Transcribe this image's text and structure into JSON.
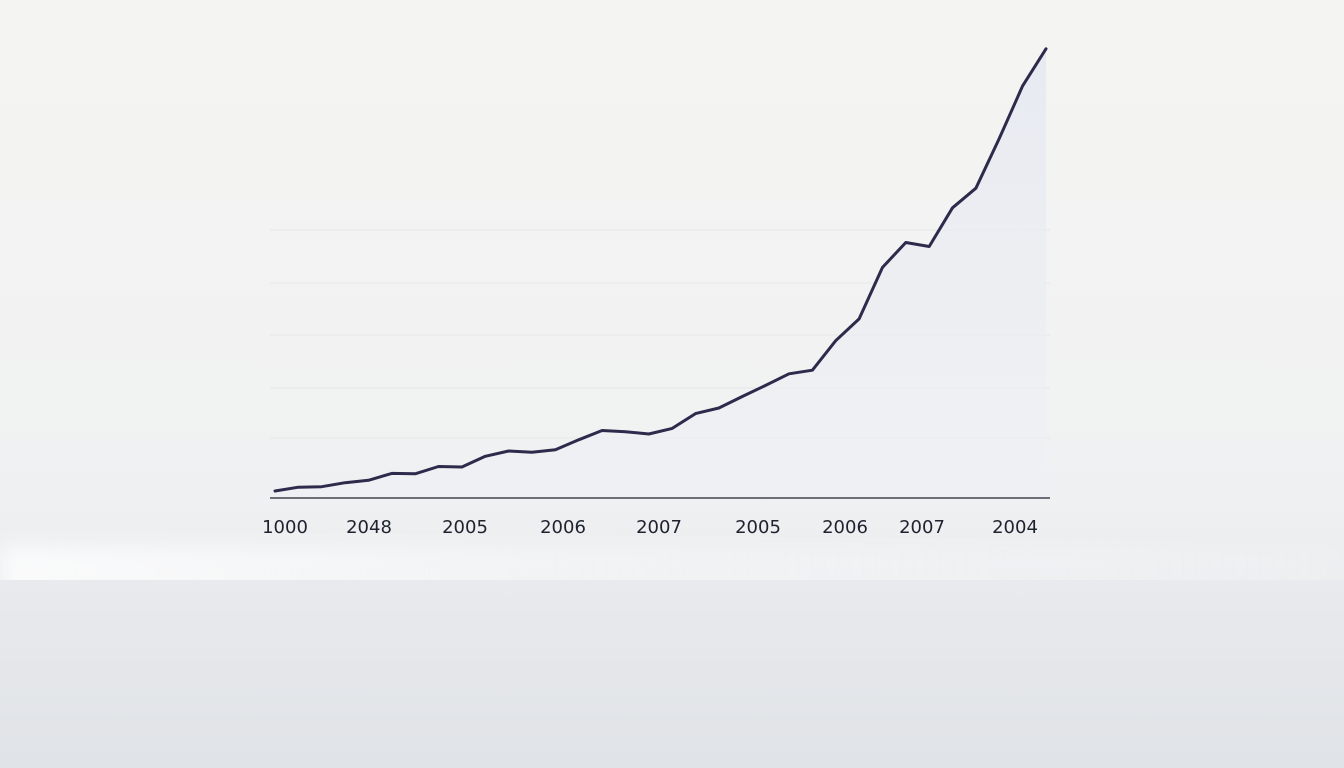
{
  "chart_data": {
    "type": "line",
    "title": "",
    "xlabel": "",
    "ylabel": "",
    "x_tick_labels": [
      "1000",
      "2048",
      "2005",
      "2006",
      "2007",
      "2005",
      "2006",
      "2007",
      "2004"
    ],
    "y": [
      0,
      4.4,
      5.0,
      9.6,
      12.3,
      20.3,
      19.8,
      28.2,
      27.6,
      39.9,
      46.0,
      44.6,
      47.6,
      59.0,
      69.7,
      68.3,
      65.6,
      72.1,
      89.1,
      95.6,
      108.8,
      121.6,
      135.0,
      139.1,
      173.0,
      198.1,
      257.5,
      286.1,
      281.5,
      326.1,
      348.6,
      406.0,
      466.4,
      509.2
    ],
    "ylim": [
      0,
      540
    ],
    "grid": false,
    "line_color": "#2d2a4c",
    "axis_color": "#1f2330",
    "fill_color": "#e9ecf3"
  }
}
